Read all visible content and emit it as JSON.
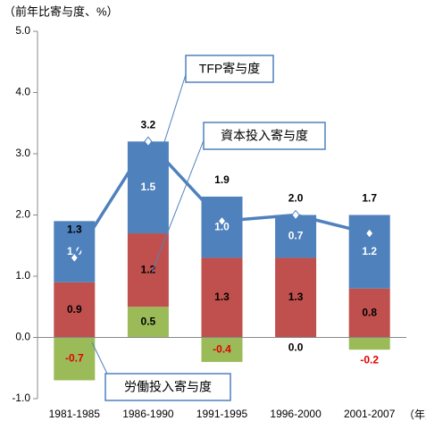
{
  "chart_data": {
    "type": "stacked_bar_line",
    "y_unit_label": "（前年比寄与度、%）",
    "x_unit_label": "（年）",
    "categories": [
      "1981-1985",
      "1986-1990",
      "1991-1995",
      "1996-2000",
      "2001-2007"
    ],
    "series": [
      {
        "name": "労働投入寄与度",
        "color": "#9bbb59",
        "values": [
          -0.7,
          0.5,
          -0.4,
          0.0,
          -0.2
        ],
        "value_labels": [
          "-0.7",
          "0.5",
          "-0.4",
          "0.0",
          "-0.2"
        ]
      },
      {
        "name": "資本投入寄与度",
        "color": "#c0504d",
        "values": [
          0.9,
          1.2,
          1.3,
          1.3,
          0.8
        ],
        "value_labels": [
          "0.9",
          "1.2",
          "1.3",
          "1.3",
          "0.8"
        ]
      },
      {
        "name": "TFP寄与度",
        "color": "#4f81bd",
        "values": [
          1.0,
          1.5,
          1.0,
          0.7,
          1.2
        ],
        "value_labels": [
          "1.0",
          "1.5",
          "1.0",
          "0.7",
          "1.2"
        ]
      }
    ],
    "totals": {
      "color": "#4f81bd",
      "values": [
        1.3,
        3.2,
        1.9,
        2.0,
        1.7
      ],
      "value_labels": [
        "1.3",
        "3.2",
        "1.9",
        "2.0",
        "1.7"
      ]
    },
    "ylim": [
      -1.0,
      5.0
    ],
    "yticks": [
      {
        "value": -1.0,
        "label": "-1.0"
      },
      {
        "value": 0.0,
        "label": "0.0"
      },
      {
        "value": 1.0,
        "label": "1.0"
      },
      {
        "value": 2.0,
        "label": "2.0"
      },
      {
        "value": 3.0,
        "label": "3.0"
      },
      {
        "value": 4.0,
        "label": "4.0"
      },
      {
        "value": 5.0,
        "label": "5.0"
      }
    ]
  }
}
